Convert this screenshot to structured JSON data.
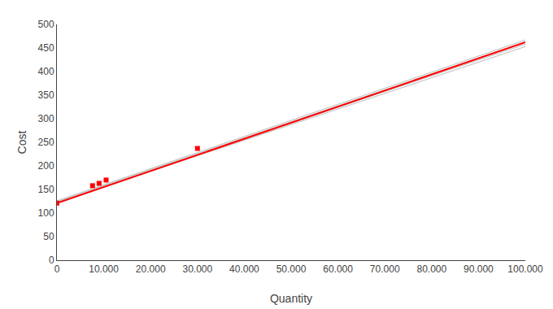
{
  "chart_data": {
    "type": "line",
    "xlabel": "Quantity",
    "ylabel": "Cost",
    "xlim": [
      0,
      100000
    ],
    "ylim": [
      0,
      500
    ],
    "xticks": [
      0,
      {
        "value": 10000,
        "label": "10.000"
      },
      {
        "value": 20000,
        "label": "20.000"
      },
      {
        "value": 30000,
        "label": "30.000"
      },
      {
        "value": 40000,
        "label": "40.000"
      },
      {
        "value": 50000,
        "label": "50.000"
      },
      {
        "value": 60000,
        "label": "60.000"
      },
      {
        "value": 70000,
        "label": "70.000"
      },
      {
        "value": 80000,
        "label": "80.000"
      },
      {
        "value": 90000,
        "label": "90.000"
      },
      {
        "value": 100000,
        "label": "100.000"
      }
    ],
    "yticks": [
      0,
      50,
      100,
      150,
      200,
      250,
      300,
      350,
      400,
      450,
      500
    ],
    "grid": false,
    "series": [
      {
        "type": "line",
        "color": "#bbbbbb",
        "line_style": "solid",
        "x": [
          0,
          100000
        ],
        "values": [
          122,
          453
        ]
      },
      {
        "type": "line",
        "color": "#bbbbbb",
        "line_style": "solid",
        "x": [
          0,
          100000
        ],
        "values": [
          123,
          458
        ]
      },
      {
        "type": "line",
        "color": "#bbbbbb",
        "line_style": "solid",
        "x": [
          0,
          100000
        ],
        "values": [
          124,
          463
        ]
      },
      {
        "type": "line",
        "color": "#bbbbbb",
        "line_style": "solid",
        "x": [
          0,
          100000
        ],
        "values": [
          126,
          467
        ]
      },
      {
        "type": "line",
        "color": "red",
        "line_style": "solid",
        "x": [
          0,
          100000
        ],
        "values": [
          121,
          462
        ]
      },
      {
        "type": "scatter",
        "color": "red",
        "marker": "square",
        "x": [
          0,
          7601,
          9000,
          10500,
          30000
        ],
        "values": [
          121,
          158,
          163,
          170,
          237
        ]
      }
    ]
  }
}
